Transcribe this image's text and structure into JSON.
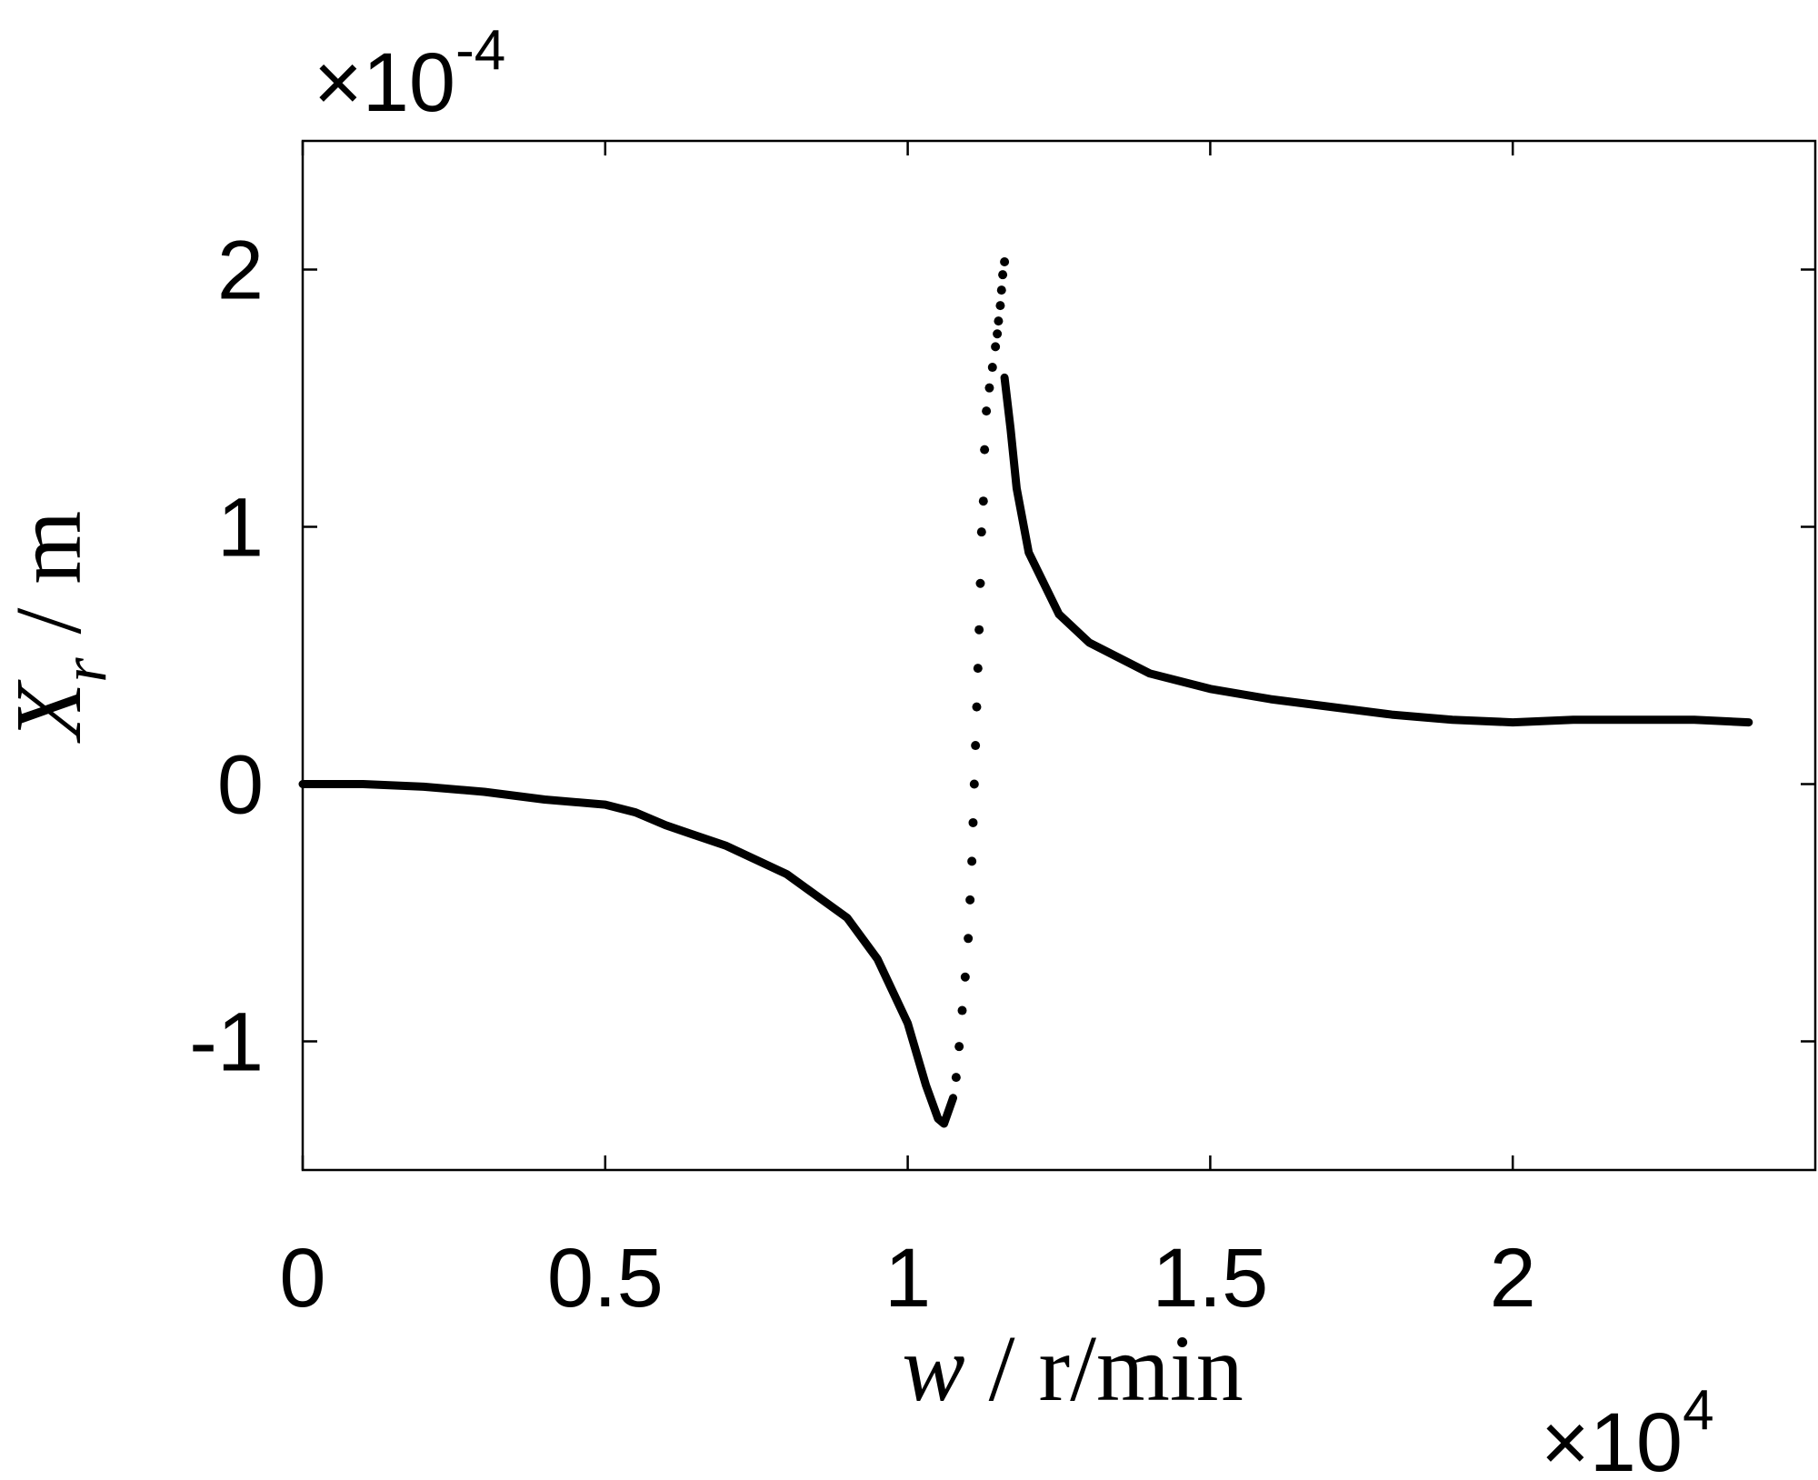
{
  "chart_data": {
    "type": "scatter",
    "xlabel_var": "w",
    "xlabel_unit": " / r/min",
    "ylabel_var": "X",
    "ylabel_sub": "r",
    "ylabel_unit": " / m",
    "x_multiplier": {
      "base": "×10",
      "exponent": "4"
    },
    "y_multiplier": {
      "base": "×10",
      "exponent": "-4"
    },
    "xlim": [
      0,
      2.5
    ],
    "ylim": [
      -1.5,
      2.5
    ],
    "x_ticks": [
      0,
      0.5,
      1,
      1.5,
      2
    ],
    "y_ticks": [
      -1,
      0,
      1,
      2
    ],
    "x_tick_labels": [
      "0",
      "0.5",
      "1",
      "1.5",
      "2"
    ],
    "y_tick_labels": [
      "-1",
      "0",
      "1",
      "2"
    ],
    "grid": false,
    "color": "#000000",
    "series": [
      {
        "style": "line",
        "points": [
          [
            0.0,
            0.0
          ],
          [
            0.1,
            0.0
          ],
          [
            0.2,
            -0.01
          ],
          [
            0.3,
            -0.03
          ],
          [
            0.4,
            -0.06
          ],
          [
            0.5,
            -0.08
          ],
          [
            0.55,
            -0.11
          ],
          [
            0.6,
            -0.16
          ],
          [
            0.65,
            -0.2
          ],
          [
            0.7,
            -0.24
          ],
          [
            0.8,
            -0.35
          ],
          [
            0.9,
            -0.52
          ],
          [
            0.95,
            -0.68
          ],
          [
            1.0,
            -0.93
          ],
          [
            1.03,
            -1.17
          ],
          [
            1.05,
            -1.3
          ],
          [
            1.06,
            -1.32
          ],
          [
            1.075,
            -1.22
          ]
        ]
      },
      {
        "style": "dots",
        "points": [
          [
            1.08,
            -1.14
          ],
          [
            1.085,
            -1.02
          ],
          [
            1.09,
            -0.88
          ],
          [
            1.095,
            -0.75
          ],
          [
            1.1,
            -0.6
          ],
          [
            1.103,
            -0.45
          ],
          [
            1.106,
            -0.3
          ],
          [
            1.108,
            -0.15
          ],
          [
            1.11,
            0.0
          ],
          [
            1.112,
            0.15
          ],
          [
            1.114,
            0.3
          ],
          [
            1.116,
            0.45
          ],
          [
            1.118,
            0.6
          ],
          [
            1.12,
            0.78
          ],
          [
            1.122,
            0.98
          ],
          [
            1.125,
            1.1
          ],
          [
            1.127,
            1.3
          ],
          [
            1.13,
            1.45
          ],
          [
            1.135,
            1.54
          ],
          [
            1.14,
            1.62
          ],
          [
            1.145,
            1.7
          ],
          [
            1.148,
            1.75
          ],
          [
            1.15,
            1.8
          ],
          [
            1.153,
            1.86
          ],
          [
            1.155,
            1.92
          ],
          [
            1.157,
            1.98
          ],
          [
            1.16,
            2.03
          ]
        ]
      },
      {
        "style": "line",
        "points": [
          [
            1.16,
            1.58
          ],
          [
            1.17,
            1.38
          ],
          [
            1.18,
            1.15
          ],
          [
            1.2,
            0.9
          ],
          [
            1.25,
            0.66
          ],
          [
            1.3,
            0.55
          ],
          [
            1.4,
            0.43
          ],
          [
            1.5,
            0.37
          ],
          [
            1.6,
            0.33
          ],
          [
            1.7,
            0.3
          ],
          [
            1.8,
            0.27
          ],
          [
            1.9,
            0.25
          ],
          [
            2.0,
            0.24
          ],
          [
            2.1,
            0.25
          ],
          [
            2.2,
            0.25
          ],
          [
            2.3,
            0.25
          ],
          [
            2.39,
            0.24
          ]
        ]
      }
    ]
  }
}
